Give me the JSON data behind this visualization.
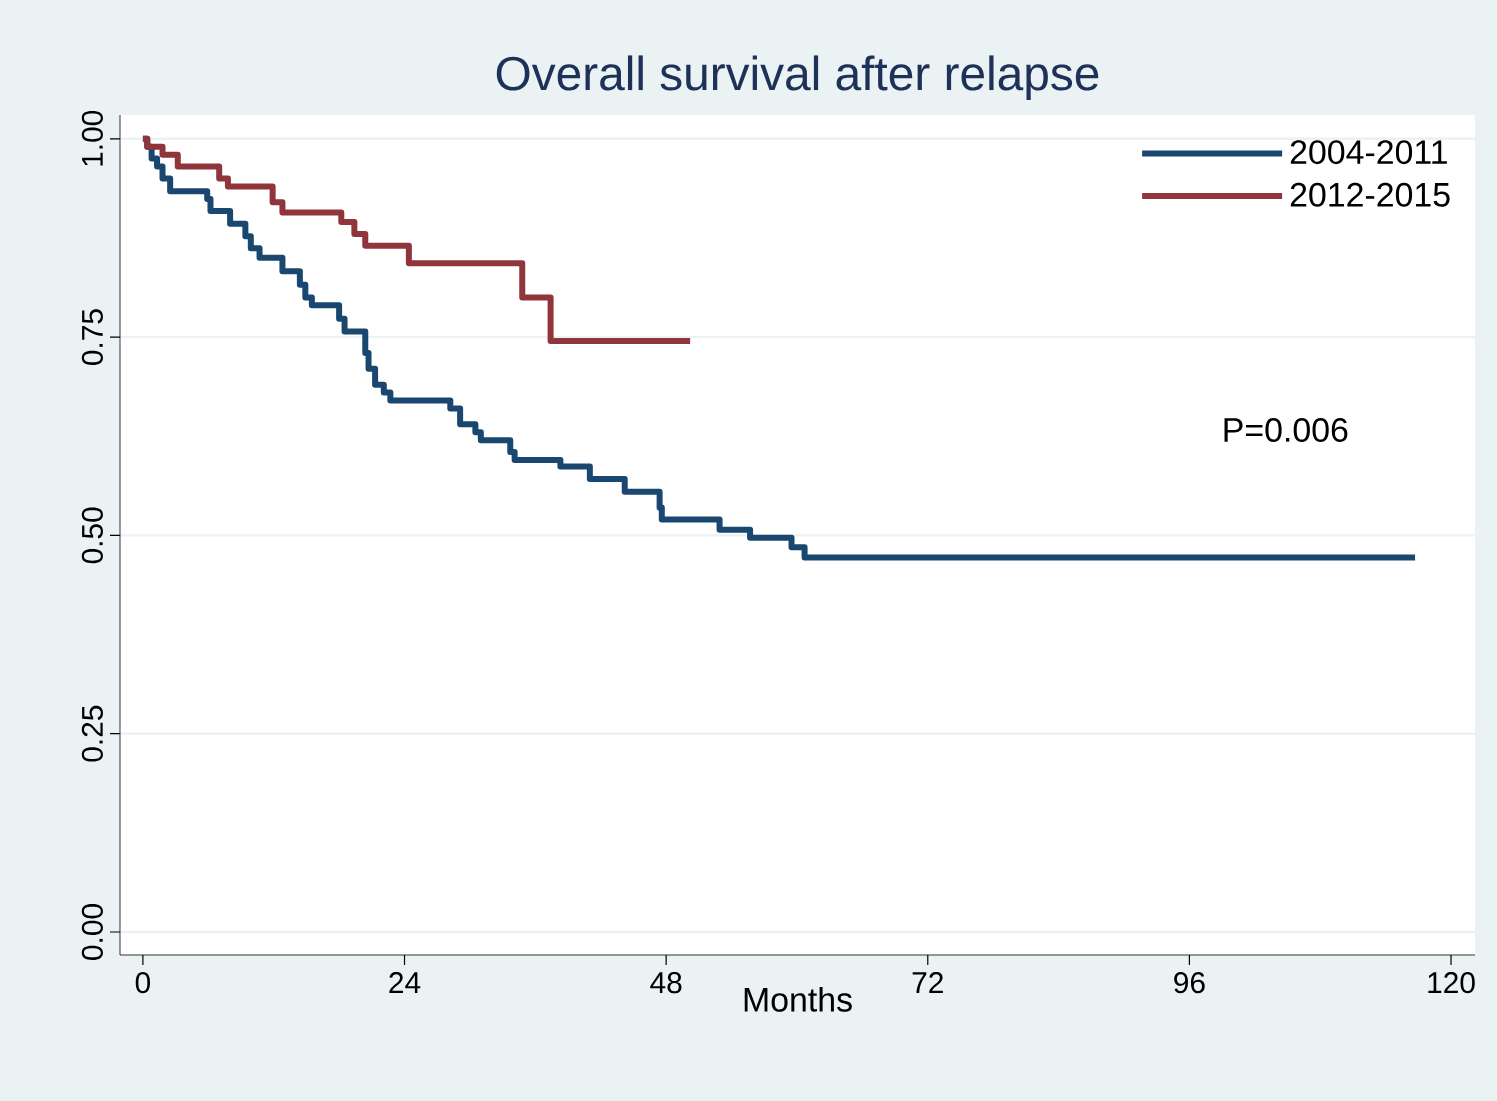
{
  "chart_data": {
    "type": "step",
    "title": "Overall survival after relapse",
    "xlabel": "Months",
    "series": [
      {
        "name": "2004-2011",
        "color": "#1a476f",
        "x": [
          0,
          0.4,
          0.8,
          1.3,
          1.8,
          2.5,
          5.9,
          6.2,
          8,
          9.4,
          9.9,
          10.7,
          12.8,
          14.4,
          14.9,
          15.5,
          18,
          18.5,
          19.1,
          20.4,
          20.7,
          21.3,
          22.1,
          22.7,
          23.4,
          28.2,
          29.1,
          30.5,
          31,
          33.7,
          34.1,
          34.4,
          38.3,
          41,
          44.2,
          47.4,
          47.6,
          49.3,
          52.9,
          55.7,
          59.5,
          60,
          60.7,
          116.7
        ],
        "values": [
          1.0,
          0.99,
          0.975,
          0.965,
          0.95,
          0.934,
          0.924,
          0.909,
          0.893,
          0.877,
          0.862,
          0.85,
          0.833,
          0.816,
          0.8,
          0.79,
          0.773,
          0.757,
          0.757,
          0.73,
          0.71,
          0.69,
          0.68,
          0.67,
          0.67,
          0.66,
          0.64,
          0.63,
          0.62,
          0.605,
          0.595,
          0.595,
          0.587,
          0.571,
          0.555,
          0.535,
          0.52,
          0.52,
          0.507,
          0.497,
          0.485,
          0.485,
          0.472,
          0.472
        ]
      },
      {
        "name": "2012-2015",
        "color": "#90353b",
        "x": [
          0,
          0.4,
          1.8,
          3.2,
          7,
          7.8,
          11.9,
          12.8,
          18.2,
          19.4,
          20.4,
          24.4,
          34.8,
          37.4,
          50.2
        ],
        "values": [
          1.0,
          0.99,
          0.98,
          0.965,
          0.95,
          0.94,
          0.92,
          0.907,
          0.895,
          0.88,
          0.865,
          0.843,
          0.8,
          0.745,
          0.745
        ]
      }
    ],
    "xlim": [
      -2.1,
      122.2
    ],
    "ylim": [
      -0.029,
      1.03
    ],
    "xticks": [
      0,
      24,
      48,
      72,
      96,
      120
    ],
    "yticks": [
      {
        "value": 0,
        "label": "0.00"
      },
      {
        "value": 0.25,
        "label": "0.25"
      },
      {
        "value": 0.5,
        "label": "0.50"
      },
      {
        "value": 0.75,
        "label": "0.75"
      },
      {
        "value": 1,
        "label": "1.00"
      }
    ],
    "grid": "y",
    "legend": "top right",
    "annotations": [
      "P=0.006"
    ]
  }
}
